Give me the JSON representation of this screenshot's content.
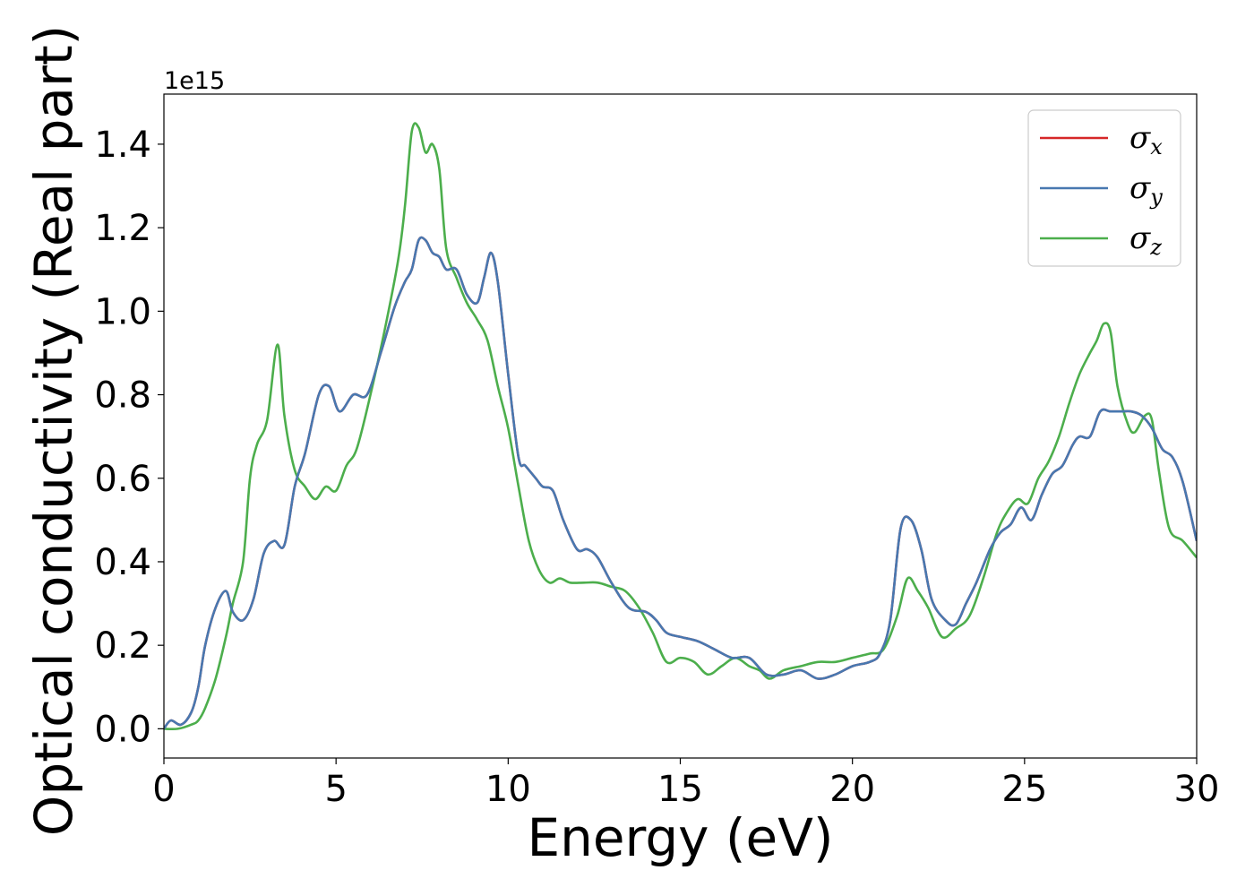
{
  "chart_data": {
    "type": "line",
    "xlabel": "Energy (eV)",
    "ylabel": "Optical conductivity (Real part)",
    "y_offset_label": "1e15",
    "y_multiplier": 1000000000000000.0,
    "xlim": [
      0,
      30
    ],
    "ylim": [
      -0.07,
      1.52
    ],
    "x_ticks": [
      0,
      5,
      10,
      15,
      20,
      25,
      30
    ],
    "x_tick_labels": [
      "0",
      "5",
      "10",
      "15",
      "20",
      "25",
      "30"
    ],
    "y_ticks": [
      0.0,
      0.2,
      0.4,
      0.6,
      0.8,
      1.0,
      1.2,
      1.4
    ],
    "y_tick_labels": [
      "0.0",
      "0.2",
      "0.4",
      "0.6",
      "0.8",
      "1.0",
      "1.2",
      "1.4"
    ],
    "grid": false,
    "legend_position": "top-right",
    "colors": {
      "sigma_x": "#d62728",
      "sigma_y": "#4878b0",
      "sigma_z": "#4cae4c"
    },
    "series": [
      {
        "name": "σx",
        "symbol": "σ",
        "sub": "x",
        "color": "#d62728",
        "x": [
          0,
          0.2,
          0.5,
          0.8,
          1.0,
          1.2,
          1.5,
          1.8,
          2.0,
          2.3,
          2.6,
          2.9,
          3.2,
          3.5,
          3.8,
          4.1,
          4.5,
          4.8,
          5.1,
          5.5,
          5.9,
          6.3,
          6.7,
          7.0,
          7.2,
          7.4,
          7.6,
          7.8,
          8.0,
          8.2,
          8.5,
          8.8,
          9.1,
          9.3,
          9.5,
          9.7,
          10.0,
          10.3,
          10.5,
          10.8,
          11.0,
          11.3,
          11.6,
          12.0,
          12.3,
          12.6,
          13.0,
          13.5,
          14.0,
          14.3,
          14.6,
          15.0,
          15.5,
          16.0,
          16.5,
          17.0,
          17.5,
          18.0,
          18.5,
          19.0,
          19.5,
          20.0,
          20.5,
          20.8,
          21.1,
          21.4,
          21.7,
          22.0,
          22.3,
          22.7,
          23.0,
          23.3,
          23.6,
          24.0,
          24.3,
          24.6,
          24.9,
          25.2,
          25.5,
          25.8,
          26.1,
          26.4,
          26.6,
          26.9,
          27.2,
          27.5,
          27.8,
          28.1,
          28.4,
          28.7,
          29.0,
          29.3,
          29.6,
          30.0
        ],
        "y": [
          0.0,
          0.02,
          0.01,
          0.04,
          0.1,
          0.2,
          0.29,
          0.33,
          0.28,
          0.26,
          0.31,
          0.42,
          0.45,
          0.44,
          0.58,
          0.66,
          0.8,
          0.82,
          0.76,
          0.8,
          0.8,
          0.9,
          1.01,
          1.07,
          1.1,
          1.17,
          1.17,
          1.14,
          1.13,
          1.1,
          1.1,
          1.04,
          1.02,
          1.08,
          1.14,
          1.07,
          0.85,
          0.65,
          0.63,
          0.6,
          0.58,
          0.57,
          0.5,
          0.43,
          0.43,
          0.41,
          0.35,
          0.29,
          0.28,
          0.26,
          0.23,
          0.22,
          0.21,
          0.19,
          0.17,
          0.17,
          0.13,
          0.13,
          0.14,
          0.12,
          0.13,
          0.15,
          0.16,
          0.18,
          0.26,
          0.48,
          0.5,
          0.43,
          0.31,
          0.26,
          0.25,
          0.3,
          0.35,
          0.43,
          0.47,
          0.49,
          0.53,
          0.5,
          0.56,
          0.61,
          0.63,
          0.68,
          0.7,
          0.7,
          0.76,
          0.76,
          0.76,
          0.76,
          0.75,
          0.72,
          0.67,
          0.65,
          0.59,
          0.45
        ]
      },
      {
        "name": "σy",
        "symbol": "σ",
        "sub": "y",
        "color": "#4878b0",
        "x": [
          0,
          0.2,
          0.5,
          0.8,
          1.0,
          1.2,
          1.5,
          1.8,
          2.0,
          2.3,
          2.6,
          2.9,
          3.2,
          3.5,
          3.8,
          4.1,
          4.5,
          4.8,
          5.1,
          5.5,
          5.9,
          6.3,
          6.7,
          7.0,
          7.2,
          7.4,
          7.6,
          7.8,
          8.0,
          8.2,
          8.5,
          8.8,
          9.1,
          9.3,
          9.5,
          9.7,
          10.0,
          10.3,
          10.5,
          10.8,
          11.0,
          11.3,
          11.6,
          12.0,
          12.3,
          12.6,
          13.0,
          13.5,
          14.0,
          14.3,
          14.6,
          15.0,
          15.5,
          16.0,
          16.5,
          17.0,
          17.5,
          18.0,
          18.5,
          19.0,
          19.5,
          20.0,
          20.5,
          20.8,
          21.1,
          21.4,
          21.7,
          22.0,
          22.3,
          22.7,
          23.0,
          23.3,
          23.6,
          24.0,
          24.3,
          24.6,
          24.9,
          25.2,
          25.5,
          25.8,
          26.1,
          26.4,
          26.6,
          26.9,
          27.2,
          27.5,
          27.8,
          28.1,
          28.4,
          28.7,
          29.0,
          29.3,
          29.6,
          30.0
        ],
        "y": [
          0.0,
          0.02,
          0.01,
          0.04,
          0.1,
          0.2,
          0.29,
          0.33,
          0.28,
          0.26,
          0.31,
          0.42,
          0.45,
          0.44,
          0.58,
          0.66,
          0.8,
          0.82,
          0.76,
          0.8,
          0.8,
          0.9,
          1.01,
          1.07,
          1.1,
          1.17,
          1.17,
          1.14,
          1.13,
          1.1,
          1.1,
          1.04,
          1.02,
          1.08,
          1.14,
          1.07,
          0.85,
          0.65,
          0.63,
          0.6,
          0.58,
          0.57,
          0.5,
          0.43,
          0.43,
          0.41,
          0.35,
          0.29,
          0.28,
          0.26,
          0.23,
          0.22,
          0.21,
          0.19,
          0.17,
          0.17,
          0.13,
          0.13,
          0.14,
          0.12,
          0.13,
          0.15,
          0.16,
          0.18,
          0.26,
          0.48,
          0.5,
          0.43,
          0.31,
          0.26,
          0.25,
          0.3,
          0.35,
          0.43,
          0.47,
          0.49,
          0.53,
          0.5,
          0.56,
          0.61,
          0.63,
          0.68,
          0.7,
          0.7,
          0.76,
          0.76,
          0.76,
          0.76,
          0.75,
          0.72,
          0.67,
          0.65,
          0.59,
          0.45
        ]
      },
      {
        "name": "σz",
        "symbol": "σ",
        "sub": "z",
        "color": "#4cae4c",
        "x": [
          0,
          0.4,
          0.8,
          1.0,
          1.2,
          1.5,
          1.8,
          2.0,
          2.3,
          2.5,
          2.7,
          3.0,
          3.3,
          3.5,
          3.8,
          4.1,
          4.4,
          4.7,
          5.0,
          5.3,
          5.6,
          6.0,
          6.4,
          6.8,
          7.0,
          7.2,
          7.4,
          7.6,
          7.8,
          8.0,
          8.2,
          8.5,
          8.8,
          9.1,
          9.4,
          9.7,
          10.0,
          10.3,
          10.6,
          10.9,
          11.2,
          11.5,
          11.8,
          12.2,
          12.6,
          13.0,
          13.4,
          13.8,
          14.2,
          14.6,
          15.0,
          15.4,
          15.8,
          16.2,
          16.6,
          17.0,
          17.3,
          17.6,
          18.0,
          18.5,
          19.0,
          19.5,
          20.0,
          20.5,
          20.9,
          21.3,
          21.6,
          21.9,
          22.2,
          22.6,
          23.0,
          23.4,
          23.8,
          24.2,
          24.5,
          24.8,
          25.1,
          25.4,
          25.7,
          26.0,
          26.3,
          26.6,
          26.9,
          27.1,
          27.3,
          27.5,
          27.7,
          28.0,
          28.2,
          28.5,
          28.7,
          28.9,
          29.2,
          29.6,
          30.0
        ],
        "y": [
          0.0,
          0.0,
          0.01,
          0.02,
          0.05,
          0.12,
          0.22,
          0.3,
          0.4,
          0.6,
          0.68,
          0.74,
          0.92,
          0.75,
          0.62,
          0.58,
          0.55,
          0.58,
          0.57,
          0.63,
          0.67,
          0.8,
          0.95,
          1.12,
          1.25,
          1.43,
          1.44,
          1.38,
          1.4,
          1.34,
          1.15,
          1.08,
          1.02,
          0.98,
          0.93,
          0.82,
          0.72,
          0.58,
          0.45,
          0.38,
          0.35,
          0.36,
          0.35,
          0.35,
          0.35,
          0.34,
          0.33,
          0.29,
          0.23,
          0.16,
          0.17,
          0.16,
          0.13,
          0.15,
          0.17,
          0.15,
          0.14,
          0.12,
          0.14,
          0.15,
          0.16,
          0.16,
          0.17,
          0.18,
          0.19,
          0.27,
          0.36,
          0.33,
          0.29,
          0.22,
          0.24,
          0.27,
          0.36,
          0.47,
          0.52,
          0.55,
          0.54,
          0.6,
          0.64,
          0.7,
          0.78,
          0.85,
          0.9,
          0.93,
          0.97,
          0.95,
          0.82,
          0.73,
          0.71,
          0.75,
          0.74,
          0.62,
          0.48,
          0.45,
          0.41
        ]
      }
    ]
  }
}
